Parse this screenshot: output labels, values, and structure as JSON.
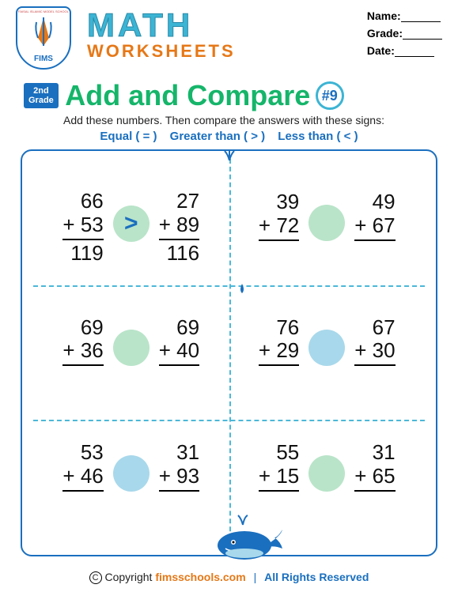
{
  "header": {
    "logo_top_text": "FAISAL ISLAMIC MODEL SCHOOL",
    "logo_abbrev": "FIMS",
    "math_title": "MATH",
    "worksheets_title": "WORKSHEETS",
    "name_label": "Name:",
    "grade_label": "Grade:",
    "date_label": "Date:"
  },
  "subheader": {
    "grade_badge_line1": "2nd",
    "grade_badge_line2": "Grade",
    "lesson_title": "Add and Compare",
    "sheet_number": "#9",
    "instructions": "Add these numbers. Then compare the answers with these signs:",
    "legend_equal": "Equal ( = )",
    "legend_greater": "Greater than ( > )",
    "legend_less": "Less than ( < )"
  },
  "problems": [
    {
      "left_top": "66",
      "left_bot": "+ 53",
      "left_sum": "119",
      "right_top": "27",
      "right_bot": "+ 89",
      "right_sum": "116",
      "circle_color": "#b9e4c9",
      "operator": ">"
    },
    {
      "left_top": "39",
      "left_bot": "+ 72",
      "left_sum": "",
      "right_top": "49",
      "right_bot": "+ 67",
      "right_sum": "",
      "circle_color": "#b9e4c9",
      "operator": ""
    },
    {
      "left_top": "69",
      "left_bot": "+ 36",
      "left_sum": "",
      "right_top": "69",
      "right_bot": "+ 40",
      "right_sum": "",
      "circle_color": "#b9e4c9",
      "operator": ""
    },
    {
      "left_top": "76",
      "left_bot": "+ 29",
      "left_sum": "",
      "right_top": "67",
      "right_bot": "+ 30",
      "right_sum": "",
      "circle_color": "#a8d8eb",
      "operator": ""
    },
    {
      "left_top": "53",
      "left_bot": "+ 46",
      "left_sum": "",
      "right_top": "31",
      "right_bot": "+ 93",
      "right_sum": "",
      "circle_color": "#a8d8eb",
      "operator": ""
    },
    {
      "left_top": "55",
      "left_bot": "+ 15",
      "left_sum": "",
      "right_top": "31",
      "right_bot": "+ 65",
      "right_sum": "",
      "circle_color": "#b9e4c9",
      "operator": ""
    }
  ],
  "footer": {
    "copyright_symbol": "C",
    "copyright_word": "Copyright",
    "brand": "fimsschools.com",
    "rights": "All Rights Reserved"
  },
  "colors": {
    "accent_blue": "#1a6fbf",
    "accent_teal": "#3cb4d4",
    "accent_green": "#15b56a",
    "accent_orange": "#e67817",
    "circle_green": "#b9e4c9",
    "circle_blue": "#a8d8eb"
  }
}
